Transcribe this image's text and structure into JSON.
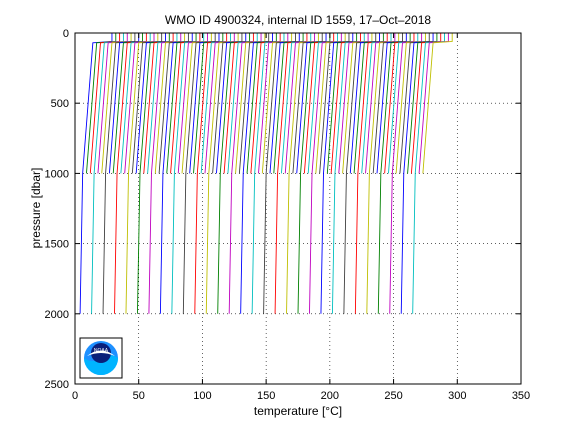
{
  "chart_data": {
    "type": "line",
    "title": "WMO ID 4900324, internal ID 1559, 17–Oct–2018",
    "xlabel_prefix": "temperature [",
    "xlabel_unit": "°C",
    "xlabel_suffix": "]",
    "ylabel": "pressure [dbar]",
    "xlim": [
      0,
      350
    ],
    "ylim": [
      0,
      2500
    ],
    "y_reversed": true,
    "grid": true,
    "grid_style": "dotted",
    "xticks": [
      0,
      50,
      100,
      150,
      200,
      250,
      300,
      350
    ],
    "yticks": [
      0,
      500,
      1000,
      1500,
      2000,
      2500
    ],
    "series_colors": [
      "#0000ff",
      "#008000",
      "#ff0000",
      "#00bfbf",
      "#bf00bf",
      "#bfbf00",
      "#404040"
    ],
    "profiles": {
      "count": 90,
      "offset_step": 3,
      "surface_pressure": 0,
      "mixed_layer_pressure": 60,
      "thermocline_pressure": 70,
      "shallow_profile_bottom": 1000,
      "deep_profile_bottom": 2000,
      "deep_profile_every": 3,
      "first_profile_surface_temp": 29,
      "first_profile_thermocline_temp": 14,
      "first_profile_1000_temp": 6,
      "first_profile_2000_temp": 4
    },
    "logo_text": "NOAA"
  }
}
